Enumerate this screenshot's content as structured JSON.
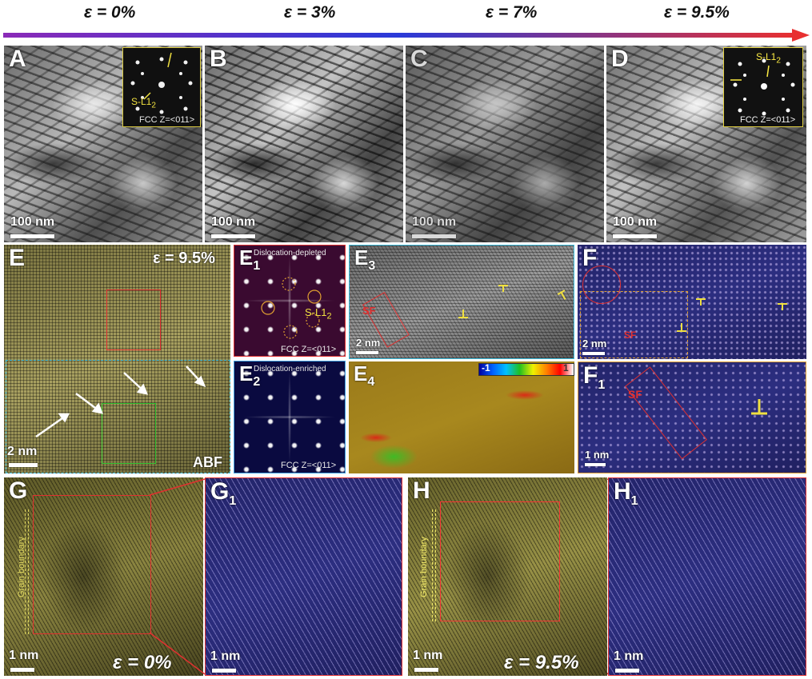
{
  "strain_labels": [
    "ε = 0%",
    "ε = 3%",
    "ε = 7%",
    "ε = 9.5%"
  ],
  "colors": {
    "arrow_start": "#8a2ab8",
    "arrow_mid": "#2a3ad8",
    "arrow_end": "#e83030",
    "inset_border": "#d8c840",
    "highlight_red": "#e03030",
    "highlight_green": "#30c030",
    "yellow_text": "#f0e040"
  },
  "panels": {
    "A": {
      "letter": "A",
      "scale": "100 nm",
      "inset_phase": "S-L1",
      "inset_phase_sub": "2",
      "inset_zone": "FCC Z=<011>"
    },
    "B": {
      "letter": "B",
      "scale": "100 nm"
    },
    "C": {
      "letter": "C",
      "scale": "100 nm"
    },
    "D": {
      "letter": "D",
      "scale": "100 nm",
      "inset_phase": "S-L1",
      "inset_phase_sub": "2",
      "inset_zone": "FCC Z=<011>"
    },
    "E": {
      "letter": "E",
      "strain": "ε = 9.5%",
      "scale": "2 nm",
      "mode": "ABF"
    },
    "E1": {
      "letter": "E",
      "sub": "1",
      "title": "Dislocation-depleted",
      "phase": "S-L1",
      "phase_sub": "2",
      "zone": "FCC Z=<011>"
    },
    "E2": {
      "letter": "E",
      "sub": "2",
      "title": "Dislocation-enriched",
      "zone": "FCC Z=<011>"
    },
    "E3": {
      "letter": "E",
      "sub": "3",
      "scale": "2 nm",
      "sf": "SF"
    },
    "E4": {
      "letter": "E",
      "sub": "4",
      "cbar_min": "-1",
      "cbar_max": "1"
    },
    "F": {
      "letter": "F",
      "scale": "2 nm",
      "sf": "SF"
    },
    "F1": {
      "letter": "F",
      "sub": "1",
      "scale": "1 nm",
      "sf": "SF"
    },
    "G": {
      "letter": "G",
      "scale": "1 nm",
      "strain": "ε = 0%",
      "gb": "Grain boundary"
    },
    "G1": {
      "letter": "G",
      "sub": "1",
      "scale": "1 nm"
    },
    "H": {
      "letter": "H",
      "scale": "1 nm",
      "strain": "ε = 9.5%",
      "gb": "Grain boundary"
    },
    "H1": {
      "letter": "H",
      "sub": "1",
      "scale": "1 nm"
    }
  }
}
